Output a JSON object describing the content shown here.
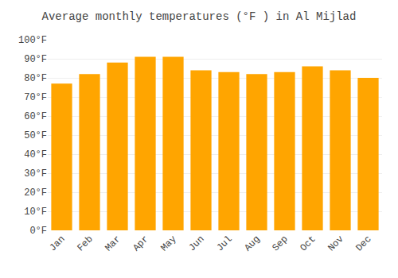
{
  "chart_data": {
    "type": "bar",
    "title": "Average monthly temperatures (°F ) in Al Mijlad",
    "categories": [
      "Jan",
      "Feb",
      "Mar",
      "Apr",
      "May",
      "Jun",
      "Jul",
      "Aug",
      "Sep",
      "Oct",
      "Nov",
      "Dec"
    ],
    "values": [
      77,
      82,
      88,
      91,
      91,
      84,
      83,
      82,
      83,
      86,
      84,
      80
    ],
    "color": "#FFA500",
    "ylim": [
      0,
      100
    ],
    "yticks": [
      {
        "value": 0,
        "label": "0°F"
      },
      {
        "value": 10,
        "label": "10°F"
      },
      {
        "value": 20,
        "label": "20°F"
      },
      {
        "value": 30,
        "label": "30°F"
      },
      {
        "value": 40,
        "label": "40°F"
      },
      {
        "value": 50,
        "label": "50°F"
      },
      {
        "value": 60,
        "label": "60°F"
      },
      {
        "value": 70,
        "label": "70°F"
      },
      {
        "value": 80,
        "label": "80°F"
      },
      {
        "value": 90,
        "label": "90°F"
      },
      {
        "value": 100,
        "label": "100°F"
      }
    ],
    "grid": true
  }
}
